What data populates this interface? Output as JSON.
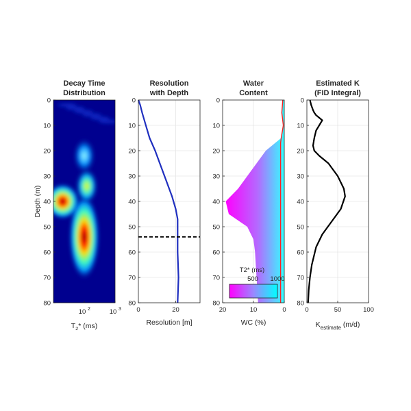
{
  "chart_data": [
    {
      "type": "heatmap",
      "title": [
        "Decay Time",
        "Distribution"
      ],
      "ylabel": "Depth (m)",
      "xlabel": "T2* (ms)",
      "xscale": "log",
      "xlim": [
        10,
        1000
      ],
      "ylim": [
        0,
        80
      ],
      "y_reversed": true,
      "xticks": [
        {
          "v": 100,
          "b": "10",
          "e": "2"
        },
        {
          "v": 1000,
          "b": "10",
          "e": "3"
        }
      ],
      "yticks": [
        0,
        10,
        20,
        30,
        40,
        50,
        60,
        70,
        80
      ],
      "colormap": "jet",
      "blobs": [
        {
          "t2": 100,
          "depth": 54,
          "intensity": 1.0
        },
        {
          "t2": 20,
          "depth": 40,
          "intensity": 0.92
        },
        {
          "t2": 120,
          "depth": 34,
          "intensity": 0.62
        },
        {
          "t2": 100,
          "depth": 22,
          "intensity": 0.3
        }
      ]
    },
    {
      "type": "line",
      "title": [
        "Resolution",
        "with Depth"
      ],
      "xlabel": "Resolution [m]",
      "xlim": [
        0,
        33
      ],
      "ylim": [
        0,
        80
      ],
      "y_reversed": true,
      "xticks": [
        0,
        20
      ],
      "yticks": [
        0,
        10,
        20,
        30,
        40,
        50,
        60,
        70,
        80
      ],
      "series": [
        {
          "x": [
            0,
            1,
            2,
            4,
            6,
            9,
            12,
            15,
            18,
            20,
            21,
            21,
            21,
            21.5,
            21
          ],
          "y": [
            0,
            2,
            5,
            10,
            15,
            20,
            26,
            32,
            38,
            43,
            47,
            50,
            60,
            70,
            80
          ]
        }
      ],
      "hline": {
        "y": 54,
        "style": "dashed"
      }
    },
    {
      "type": "area",
      "title": [
        "Water",
        "Content"
      ],
      "xlabel": "WC (%)",
      "xlim": [
        20,
        0
      ],
      "ylim": [
        0,
        80
      ],
      "y_reversed": true,
      "xticks": [
        20,
        10,
        0
      ],
      "yticks": [
        0,
        10,
        20,
        30,
        40,
        50,
        60,
        70,
        80
      ],
      "depth": [
        0,
        5,
        10,
        15,
        17,
        20,
        25,
        30,
        35,
        40,
        45,
        50,
        55,
        60,
        70,
        80
      ],
      "wc": [
        0.5,
        0.8,
        0.3,
        1.0,
        3.0,
        6.0,
        9.0,
        12.0,
        15.0,
        19.0,
        18.0,
        12.0,
        10.0,
        9.5,
        9.0,
        8.5
      ],
      "colorbar": {
        "label": "T2* (ms)",
        "ticks": [
          "500",
          "1000"
        ]
      }
    },
    {
      "type": "line",
      "title": [
        "Estimated K",
        "(FID Integral)"
      ],
      "xlabel": "K estimate (m/d)",
      "xlim": [
        0,
        100
      ],
      "ylim": [
        0,
        80
      ],
      "y_reversed": true,
      "xticks": [
        0,
        50,
        100
      ],
      "yticks": [
        0,
        10,
        20,
        30,
        40,
        50,
        60,
        70,
        80
      ],
      "series": [
        {
          "x": [
            5,
            7,
            10,
            12,
            15,
            20,
            25,
            20,
            15,
            12,
            10,
            12,
            20,
            35,
            50,
            60,
            62,
            55,
            40,
            25,
            15,
            8,
            5,
            3,
            2
          ],
          "y": [
            0,
            2,
            4,
            5,
            6,
            7,
            8,
            10,
            12,
            15,
            18,
            20,
            22,
            25,
            30,
            35,
            38,
            43,
            48,
            53,
            58,
            65,
            70,
            75,
            80
          ]
        }
      ]
    }
  ]
}
